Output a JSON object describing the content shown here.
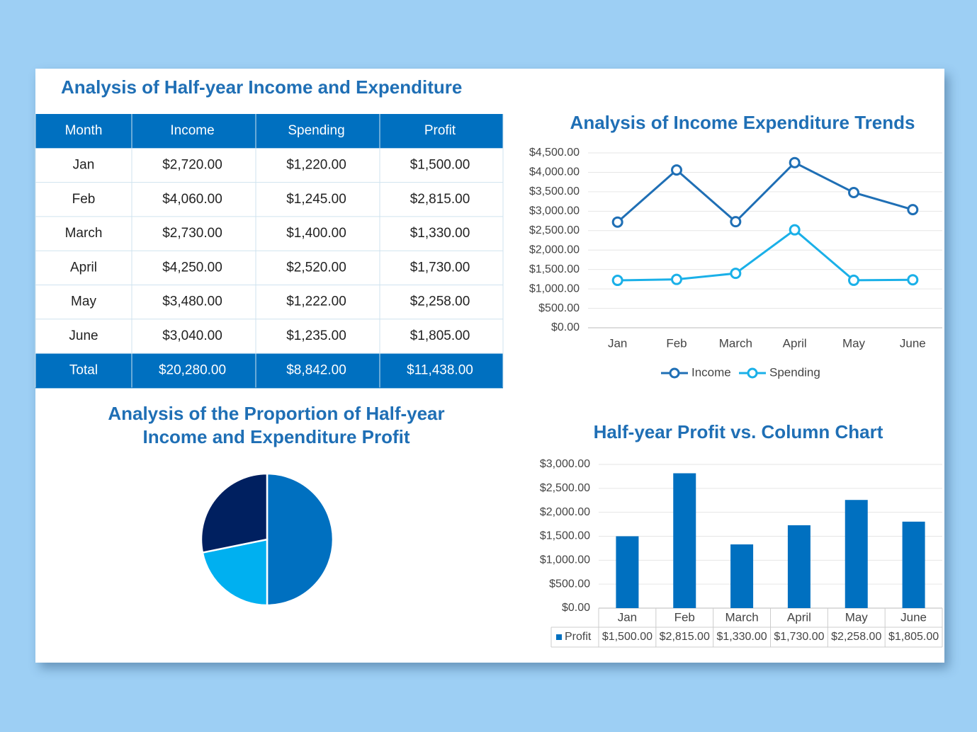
{
  "title": "Analysis of Half-year Income and Expenditure",
  "table": {
    "header": [
      "Month",
      "Income",
      "Spending",
      "Profit"
    ],
    "rows": [
      [
        "Jan",
        "$2,720.00",
        "$1,220.00",
        "$1,500.00"
      ],
      [
        "Feb",
        "$4,060.00",
        "$1,245.00",
        "$2,815.00"
      ],
      [
        "March",
        "$2,730.00",
        "$1,400.00",
        "$1,330.00"
      ],
      [
        "April",
        "$4,250.00",
        "$2,520.00",
        "$1,730.00"
      ],
      [
        "May",
        "$3,480.00",
        "$1,222.00",
        "$2,258.00"
      ],
      [
        "June",
        "$3,040.00",
        "$1,235.00",
        "$1,805.00"
      ]
    ],
    "total": [
      "Total",
      "$20,280.00",
      "$8,842.00",
      "$11,438.00"
    ]
  },
  "chart_data": [
    {
      "type": "line",
      "title": "Analysis of Income Expenditure Trends",
      "categories": [
        "Jan",
        "Feb",
        "March",
        "April",
        "May",
        "June"
      ],
      "series": [
        {
          "name": "Income",
          "color": "#1f6fb5",
          "values": [
            2720,
            4060,
            2730,
            4250,
            3480,
            3040
          ]
        },
        {
          "name": "Spending",
          "color": "#1ab0e8",
          "values": [
            1220,
            1245,
            1400,
            2520,
            1222,
            1235
          ]
        }
      ],
      "ylim": [
        0,
        4500
      ],
      "yticks": [
        {
          "value": 0,
          "label": "$0.00"
        },
        {
          "value": 500,
          "label": "$500.00"
        },
        {
          "value": 1000,
          "label": "$1,000.00"
        },
        {
          "value": 1500,
          "label": "$1,500.00"
        },
        {
          "value": 2000,
          "label": "$2,000.00"
        },
        {
          "value": 2500,
          "label": "$2,500.00"
        },
        {
          "value": 3000,
          "label": "$3,000.00"
        },
        {
          "value": 3500,
          "label": "$3,500.00"
        },
        {
          "value": 4000,
          "label": "$4,000.00"
        },
        {
          "value": 4500,
          "label": "$4,500.00"
        }
      ],
      "grid": true,
      "legend": "bottom"
    },
    {
      "type": "pie",
      "title": "Analysis of the Proportion of Half-year Income and Expenditure Profit",
      "values": [
        20280,
        8842,
        11438
      ],
      "colors": [
        "#0070c0",
        "#00b0f0",
        "#002060"
      ]
    },
    {
      "type": "bar",
      "title": "Half-year Profit vs. Column Chart",
      "categories": [
        "Jan",
        "Feb",
        "March",
        "April",
        "May",
        "June"
      ],
      "series": [
        {
          "name": "Profit",
          "color": "#0070c0",
          "values": [
            1500,
            2815,
            1330,
            1730,
            2258,
            1805
          ],
          "value_labels": [
            "$1,500.00",
            "$2,815.00",
            "$1,330.00",
            "$1,730.00",
            "$2,258.00",
            "$1,805.00"
          ]
        }
      ],
      "ylim": [
        0,
        3000
      ],
      "yticks": [
        {
          "value": 0,
          "label": "$0.00"
        },
        {
          "value": 500,
          "label": "$500.00"
        },
        {
          "value": 1000,
          "label": "$1,000.00"
        },
        {
          "value": 1500,
          "label": "$1,500.00"
        },
        {
          "value": 2000,
          "label": "$2,000.00"
        },
        {
          "value": 2500,
          "label": "$2,500.00"
        },
        {
          "value": 3000,
          "label": "$3,000.00"
        }
      ],
      "grid": true,
      "legend": "data-table"
    }
  ]
}
